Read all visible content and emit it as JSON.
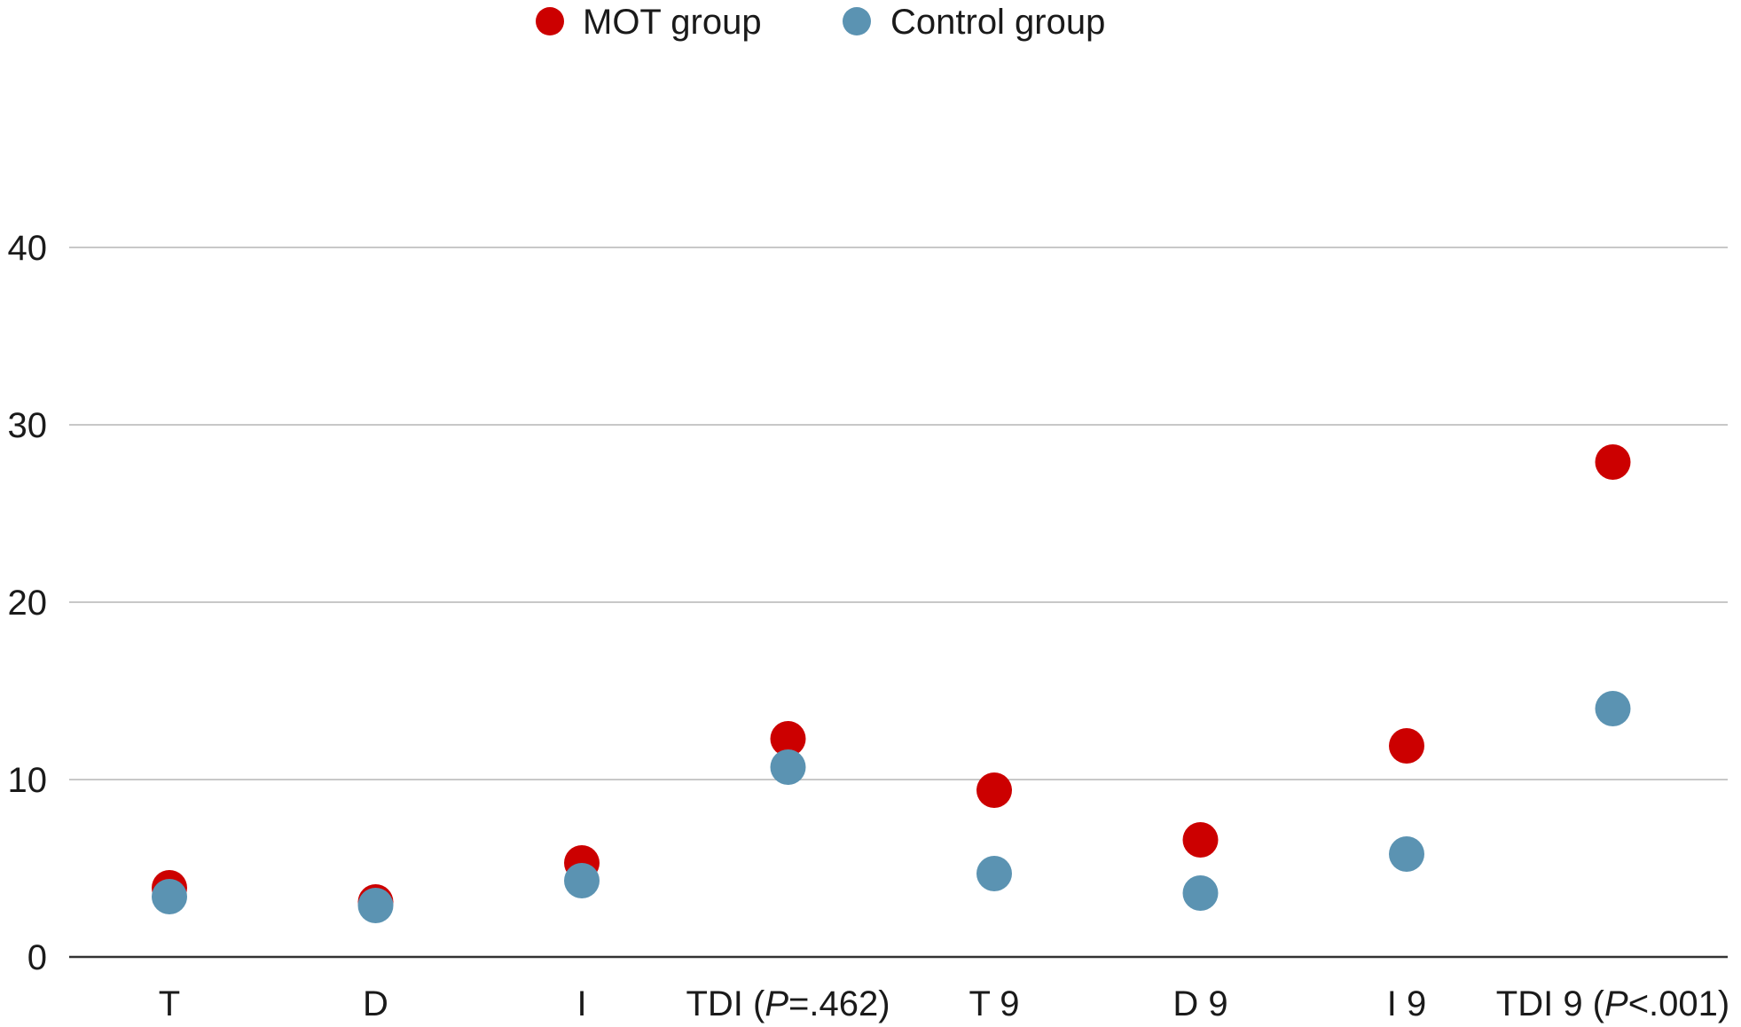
{
  "chart_data": {
    "type": "scatter",
    "categories": [
      "T",
      "D",
      "I",
      "TDI (P=.462)",
      "T 9",
      "D 9",
      "I 9",
      "TDI 9 (P<.001)"
    ],
    "category_labels": [
      {
        "pre": "T",
        "italic": "",
        "post": ""
      },
      {
        "pre": "D",
        "italic": "",
        "post": ""
      },
      {
        "pre": "I",
        "italic": "",
        "post": ""
      },
      {
        "pre": "TDI (",
        "italic": "P",
        "post": "=.462)"
      },
      {
        "pre": "T 9",
        "italic": "",
        "post": ""
      },
      {
        "pre": "D 9",
        "italic": "",
        "post": ""
      },
      {
        "pre": "I 9",
        "italic": "",
        "post": ""
      },
      {
        "pre": "TDI 9 (",
        "italic": "P",
        "post": "<.001)"
      }
    ],
    "series": [
      {
        "name": "MOT group",
        "color": "#cc0000",
        "values": [
          3.9,
          3.1,
          5.3,
          12.3,
          9.4,
          6.6,
          11.9,
          27.9
        ]
      },
      {
        "name": "Control group",
        "color": "#5b93b2",
        "values": [
          3.4,
          2.9,
          4.3,
          10.7,
          4.7,
          3.6,
          5.8,
          14.0
        ]
      }
    ],
    "y_ticks": [
      0,
      10,
      20,
      30,
      40
    ],
    "ylim": [
      0,
      40
    ],
    "grid": true,
    "legend_position": "top-center"
  }
}
